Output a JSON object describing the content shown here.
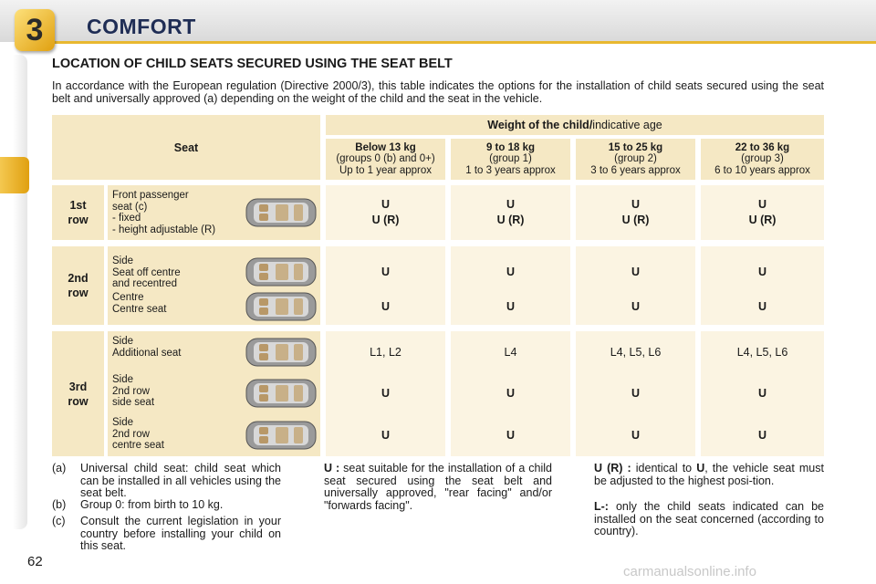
{
  "header": {
    "chapter": "3",
    "title": "COMFORT"
  },
  "section_title": "LOCATION OF CHILD SEATS SECURED USING THE SEAT BELT",
  "intro": "In accordance with the European regulation (Directive 2000/3), this table indicates the options for the installation of child seats secured using the seat belt and universally approved (a) depending on the weight of the child and the seat in the vehicle.",
  "table": {
    "seat_header": "Seat",
    "weight_header": {
      "bold": "Weight of the child/",
      "normal": "indicative age"
    },
    "columns": [
      {
        "weight": "Below 13 kg",
        "group": "(groups 0 (b) and 0+)",
        "age": "Up to 1 year approx"
      },
      {
        "weight": "9 to 18 kg",
        "group": "(group 1)",
        "age": "1 to 3 years approx"
      },
      {
        "weight": "15 to 25 kg",
        "group": "(group 2)",
        "age": "3 to 6 years approx"
      },
      {
        "weight": "22 to 36 kg",
        "group": "(group 3)",
        "age": "6 to 10 years approx"
      }
    ],
    "rows": [
      {
        "label_lines": [
          "1st",
          "row"
        ],
        "seats": [
          {
            "lines": [
              "Front passenger",
              "seat (c)",
              "- fixed",
              "- height adjustable (R)"
            ],
            "cells": [
              [
                "U",
                "U (R)"
              ],
              [
                "U",
                "U (R)"
              ],
              [
                "U",
                "U (R)"
              ],
              [
                "U",
                "U (R)"
              ]
            ]
          }
        ]
      },
      {
        "label_lines": [
          "2nd",
          "row"
        ],
        "seats": [
          {
            "lines": [
              "Side",
              "Seat off centre",
              "and recentred"
            ],
            "cells": [
              [
                "U"
              ],
              [
                "U"
              ],
              [
                "U"
              ],
              [
                "U"
              ]
            ]
          },
          {
            "lines": [
              "Centre",
              "Centre seat"
            ],
            "cells": [
              [
                "U"
              ],
              [
                "U"
              ],
              [
                "U"
              ],
              [
                "U"
              ]
            ]
          }
        ]
      },
      {
        "label_lines": [
          "3rd",
          "row"
        ],
        "seats": [
          {
            "lines": [
              "Side",
              "Additional seat"
            ],
            "cells": [
              [
                "L1, L2"
              ],
              [
                "L4"
              ],
              [
                "L4, L5, L6"
              ],
              [
                "L4, L5, L6"
              ]
            ]
          },
          {
            "lines": [
              "Side",
              "2nd row",
              "side seat"
            ],
            "cells": [
              [
                "U"
              ],
              [
                "U"
              ],
              [
                "U"
              ],
              [
                "U"
              ]
            ]
          },
          {
            "lines": [
              "Side",
              "2nd row",
              "centre seat"
            ],
            "cells": [
              [
                "U"
              ],
              [
                "U"
              ],
              [
                "U"
              ],
              [
                "U"
              ]
            ]
          }
        ]
      }
    ]
  },
  "footnotes": [
    {
      "mark": "(a)",
      "text": "Universal child seat: child seat which can be installed in all vehicles using the seat belt."
    },
    {
      "mark": "(b)",
      "text": "Group 0: from birth to 10 kg."
    },
    {
      "mark": "(c)",
      "text": "Consult the current legislation in your country before installing your child on this seat."
    }
  ],
  "legend": {
    "u": {
      "term": "U :",
      "text": " seat suitable for the installation of a child seat secured using the seat belt and universally approved, \"rear facing\" and/or \"forwards facing\"."
    },
    "ur": {
      "term": "U (R) :",
      "text": " identical to ",
      "term2": "U",
      "text2": ", the vehicle seat must be adjusted to the highest posi-tion."
    },
    "l": {
      "term": "L-:",
      "text": " only the child seats indicated can be installed on the seat concerned (according to country)."
    }
  },
  "page_number": "62",
  "watermark": "carmanualsonline.info"
}
